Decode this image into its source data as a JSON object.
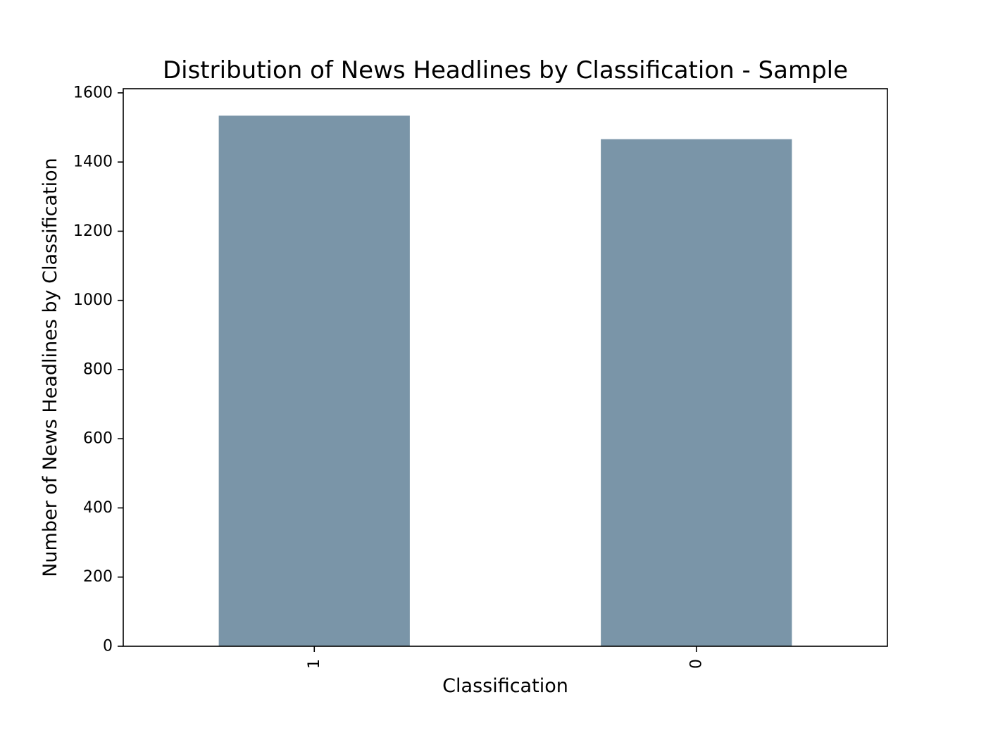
{
  "chart_data": {
    "type": "bar",
    "title": "Distribution of News Headlines by Classification - Sample",
    "xlabel": "Classification",
    "ylabel": "Number of News Headlines by Classification",
    "categories": [
      "1",
      "0"
    ],
    "values": [
      1534,
      1466
    ],
    "ylim": [
      0,
      1612
    ],
    "yticks": [
      0,
      200,
      400,
      600,
      800,
      1000,
      1200,
      1400,
      1600
    ],
    "ytick_labels": [
      "0",
      "200",
      "400",
      "600",
      "800",
      "1000",
      "1200",
      "1400",
      "1600"
    ],
    "bar_color": "#7a95a8",
    "grid": false,
    "legend": "none"
  }
}
